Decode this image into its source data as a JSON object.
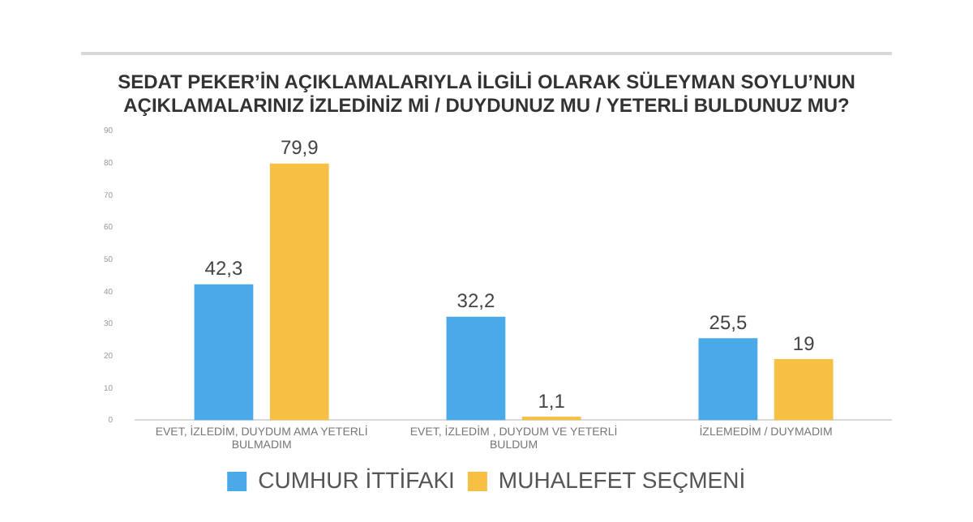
{
  "chart_data": {
    "type": "bar",
    "title": "SEDAT PEKER’İN AÇIKLAMALARIYLA İLGİLİ OLARAK SÜLEYMAN SOYLU’NUN AÇIKLAMALARINIZ İZLEDİNİZ Mİ / DUYDUNUZ MU / YETERLİ BULDUNUZ MU?",
    "categories": [
      "EVET, İZLEDİM, DUYDUM AMA YETERLİ BULMADIM",
      "EVET, İZLEDİM , DUYDUM VE YETERLİ BULDUM",
      "İZLEMEDİM / DUYMADIM"
    ],
    "series": [
      {
        "name": "CUMHUR İTTİFAKI",
        "color": "#4aa9e9",
        "values": [
          42.3,
          32.2,
          25.5
        ],
        "value_labels": [
          "42,3",
          "32,2",
          "25,5"
        ]
      },
      {
        "name": "MUHALEFET SEÇMENİ",
        "color": "#f5c043",
        "values": [
          79.9,
          1.1,
          19
        ],
        "value_labels": [
          "79,9",
          "1,1",
          "19"
        ]
      }
    ],
    "ylim": [
      0,
      90
    ],
    "yticks": [
      0,
      10,
      20,
      30,
      40,
      50,
      60,
      70,
      80,
      90
    ],
    "grid": false,
    "legend": "bottom"
  }
}
